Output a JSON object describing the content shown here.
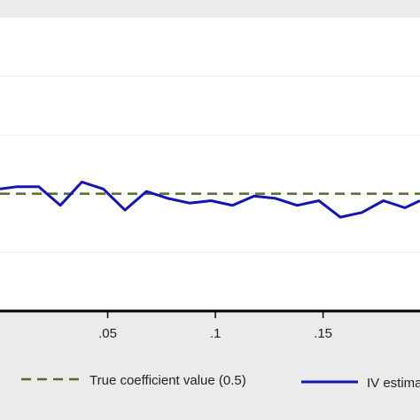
{
  "chart_data": {
    "type": "line",
    "title": "",
    "xlabel": "",
    "ylabel": "",
    "xlim": [
      0.0,
      0.195
    ],
    "ylim": [
      0.0,
      1.25
    ],
    "grid": true,
    "legend_placement": "bottom",
    "x_ticks": [
      {
        "value": 0.05,
        "label": ".05"
      },
      {
        "value": 0.1,
        "label": ".1"
      },
      {
        "value": 0.15,
        "label": ".15"
      }
    ],
    "series": [
      {
        "name": "True coefficient value (0.5)",
        "style": "dashed",
        "color": "#4e6e2e",
        "x": [
          0.0,
          0.195
        ],
        "y": [
          0.5,
          0.5
        ]
      },
      {
        "name": "IV estima",
        "style": "solid",
        "color": "#1414b4",
        "x": [
          0.0,
          0.008,
          0.018,
          0.028,
          0.038,
          0.048,
          0.058,
          0.068,
          0.078,
          0.088,
          0.098,
          0.108,
          0.118,
          0.128,
          0.138,
          0.148,
          0.158,
          0.168,
          0.178,
          0.188,
          0.195
        ],
        "y": [
          0.52,
          0.53,
          0.53,
          0.45,
          0.55,
          0.52,
          0.43,
          0.51,
          0.48,
          0.46,
          0.47,
          0.45,
          0.49,
          0.48,
          0.45,
          0.47,
          0.4,
          0.42,
          0.47,
          0.44,
          0.47
        ]
      }
    ]
  },
  "colors": {
    "background": "#ebebeb",
    "plot_background": "#ffffff",
    "gridline": "#eeeeee",
    "axis": "#000000"
  }
}
